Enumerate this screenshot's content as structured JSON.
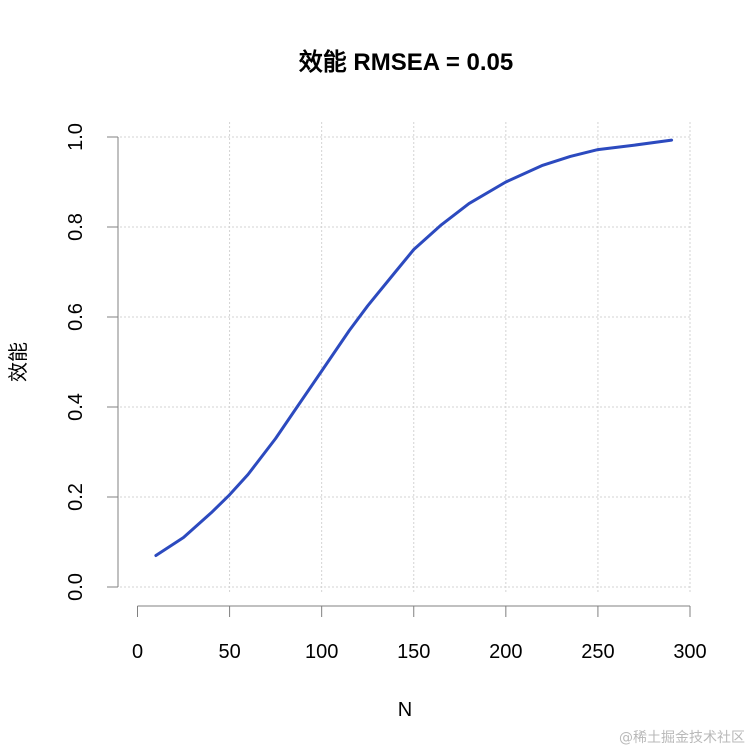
{
  "chart_data": {
    "type": "line",
    "title": "效能 RMSEA = 0.05",
    "xlabel": "N",
    "ylabel": "效能",
    "xlim": [
      0,
      300
    ],
    "ylim": [
      0,
      1
    ],
    "x_ticks": [
      "0",
      "50",
      "100",
      "150",
      "200",
      "250",
      "300"
    ],
    "y_ticks": [
      "0.0",
      "0.2",
      "0.4",
      "0.6",
      "0.8",
      "1.0"
    ],
    "grid": true,
    "line_color": "#2C4ABF",
    "series": [
      {
        "x": [
          10,
          25,
          40,
          50,
          60,
          75,
          85,
          100,
          115,
          125,
          140,
          150,
          165,
          180,
          200,
          220,
          235,
          250,
          270,
          290
        ],
        "y": [
          0.07,
          0.11,
          0.165,
          0.205,
          0.25,
          0.33,
          0.39,
          0.48,
          0.57,
          0.625,
          0.7,
          0.75,
          0.805,
          0.852,
          0.9,
          0.937,
          0.957,
          0.972,
          0.982,
          0.993
        ]
      }
    ]
  },
  "watermark": "@稀土掘金技术社区"
}
